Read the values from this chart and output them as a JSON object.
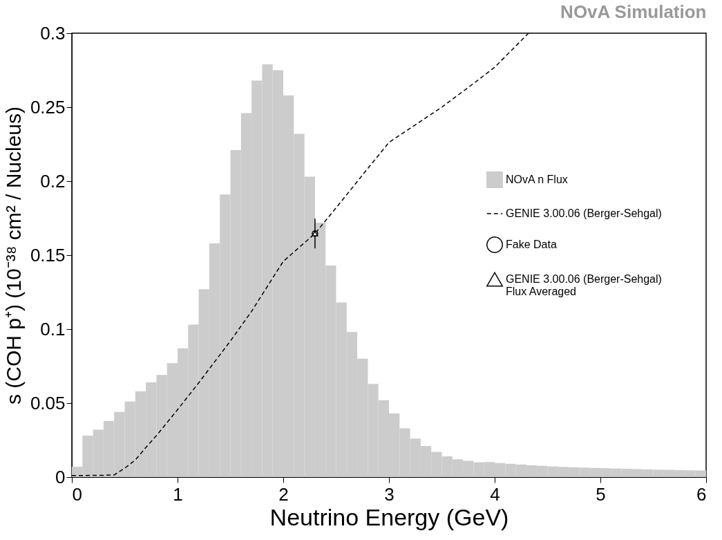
{
  "chart_data": {
    "type": "line",
    "title": "NOvA Simulation",
    "xlabel": "Neutrino Energy (GeV)",
    "ylabel": "s (COH p⁺) (10⁻³⁸ cm² / Nucleus)",
    "xlim": [
      0,
      6
    ],
    "ylim": [
      0,
      0.3
    ],
    "xticks": [
      0,
      1,
      2,
      3,
      4,
      5,
      6
    ],
    "yticks": [
      0,
      0.05,
      0.1,
      0.15,
      0.2,
      0.25,
      0.3
    ],
    "grid": false,
    "legend": "right",
    "series": [
      {
        "type": "histogram",
        "name": "NOvA n Flux",
        "color": "#cccccc",
        "bins": [
          0,
          0.1,
          0.2,
          0.3,
          0.4,
          0.5,
          0.6,
          0.7,
          0.8,
          0.9,
          1.0,
          1.1,
          1.2,
          1.3,
          1.4,
          1.5,
          1.6,
          1.7,
          1.8,
          1.9,
          2.0,
          2.1,
          2.2,
          2.3,
          2.4,
          2.5,
          2.6,
          2.7,
          2.8,
          2.9,
          3.0,
          3.1,
          3.2,
          3.3,
          3.4,
          3.5,
          3.6,
          3.7,
          3.8,
          3.9,
          4.0,
          4.1,
          4.2,
          4.3,
          4.4,
          4.5,
          4.6,
          4.7,
          4.8,
          4.9,
          5.0,
          5.1,
          5.2,
          5.3,
          5.4,
          5.5,
          5.6,
          5.7,
          5.8,
          5.9,
          6.0
        ],
        "values": [
          0.007,
          0.028,
          0.032,
          0.038,
          0.044,
          0.051,
          0.058,
          0.064,
          0.069,
          0.077,
          0.087,
          0.103,
          0.127,
          0.158,
          0.191,
          0.221,
          0.246,
          0.268,
          0.279,
          0.275,
          0.258,
          0.232,
          0.203,
          0.172,
          0.143,
          0.118,
          0.098,
          0.08,
          0.063,
          0.052,
          0.043,
          0.033,
          0.026,
          0.021,
          0.017,
          0.014,
          0.012,
          0.011,
          0.01,
          0.0102,
          0.0095,
          0.009,
          0.0085,
          0.008,
          0.0076,
          0.0072,
          0.0069,
          0.0066,
          0.0064,
          0.0062,
          0.006,
          0.0058,
          0.0056,
          0.0054,
          0.0052,
          0.005,
          0.0049,
          0.0047,
          0.0046,
          0.0045
        ]
      },
      {
        "name": "GENIE 3.00.06 (Berger-Sehgal)",
        "color": "#000000",
        "line_style": "dashed",
        "x": [
          0,
          0.3,
          0.4,
          0.5,
          0.6,
          0.7,
          0.8,
          1.0,
          1.2,
          1.5,
          1.7,
          2.0,
          2.3,
          2.5,
          2.8,
          3.0,
          3.5,
          3.8,
          4.0,
          4.32
        ],
        "values": [
          0.001,
          0.0012,
          0.0015,
          0.006,
          0.0115,
          0.02,
          0.028,
          0.0456,
          0.0637,
          0.092,
          0.112,
          0.1458,
          0.1646,
          0.182,
          0.2086,
          0.2262,
          0.25,
          0.266,
          0.277,
          0.3
        ]
      },
      {
        "type": "scatter",
        "name": "Fake Data",
        "color": "#000000",
        "marker": "circle",
        "x": [
          2.3
        ],
        "values": [
          0.1646
        ],
        "errors": [
          0.01
        ]
      },
      {
        "type": "scatter",
        "name": "GENIE 3.00.06 (Berger-Sehgal)\nFlux Averaged",
        "color": "#000000",
        "marker": "triangle",
        "x": [
          2.3
        ],
        "values": [
          0.1646
        ]
      }
    ]
  }
}
